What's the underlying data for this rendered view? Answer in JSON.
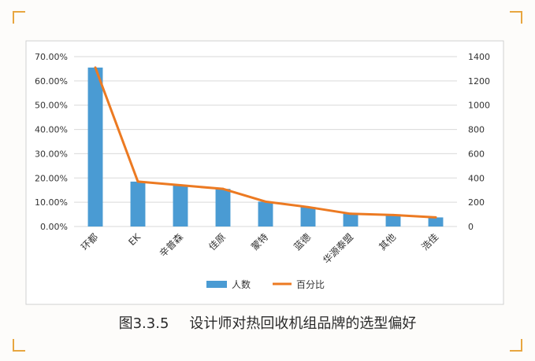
{
  "caption": {
    "figure_number": "图3.3.5",
    "title": "设计师对热回收机组品牌的选型偏好"
  },
  "colors": {
    "bar": "#4a9bd3",
    "line": "#ec7a22",
    "grid": "#d9d9d9",
    "corner": "#e8a640",
    "axis_text": "#333333"
  },
  "chart_data": {
    "type": "bar",
    "categories": [
      "环都",
      "EK",
      "辛普森",
      "佳原",
      "蒙特",
      "蓝德",
      "华源泰盟",
      "其他",
      "浩佳"
    ],
    "series": [
      {
        "name": "人数",
        "type": "bar",
        "axis": "secondary",
        "values": [
          1310,
          370,
          340,
          310,
          205,
          160,
          105,
          95,
          75
        ]
      },
      {
        "name": "百分比",
        "type": "line",
        "axis": "primary",
        "values": [
          0.655,
          0.185,
          0.17,
          0.155,
          0.1025,
          0.08,
          0.0525,
          0.0475,
          0.0375
        ]
      }
    ],
    "y_left": {
      "ylim": [
        0,
        0.7
      ],
      "ticks": [
        "0.00%",
        "10.00%",
        "20.00%",
        "30.00%",
        "40.00%",
        "50.00%",
        "60.00%",
        "70.00%"
      ]
    },
    "y_right": {
      "ylim": [
        0,
        1400
      ],
      "ticks": [
        "0",
        "200",
        "400",
        "600",
        "800",
        "1000",
        "1200",
        "1400"
      ]
    },
    "grid": true,
    "legend_position": "bottom"
  }
}
